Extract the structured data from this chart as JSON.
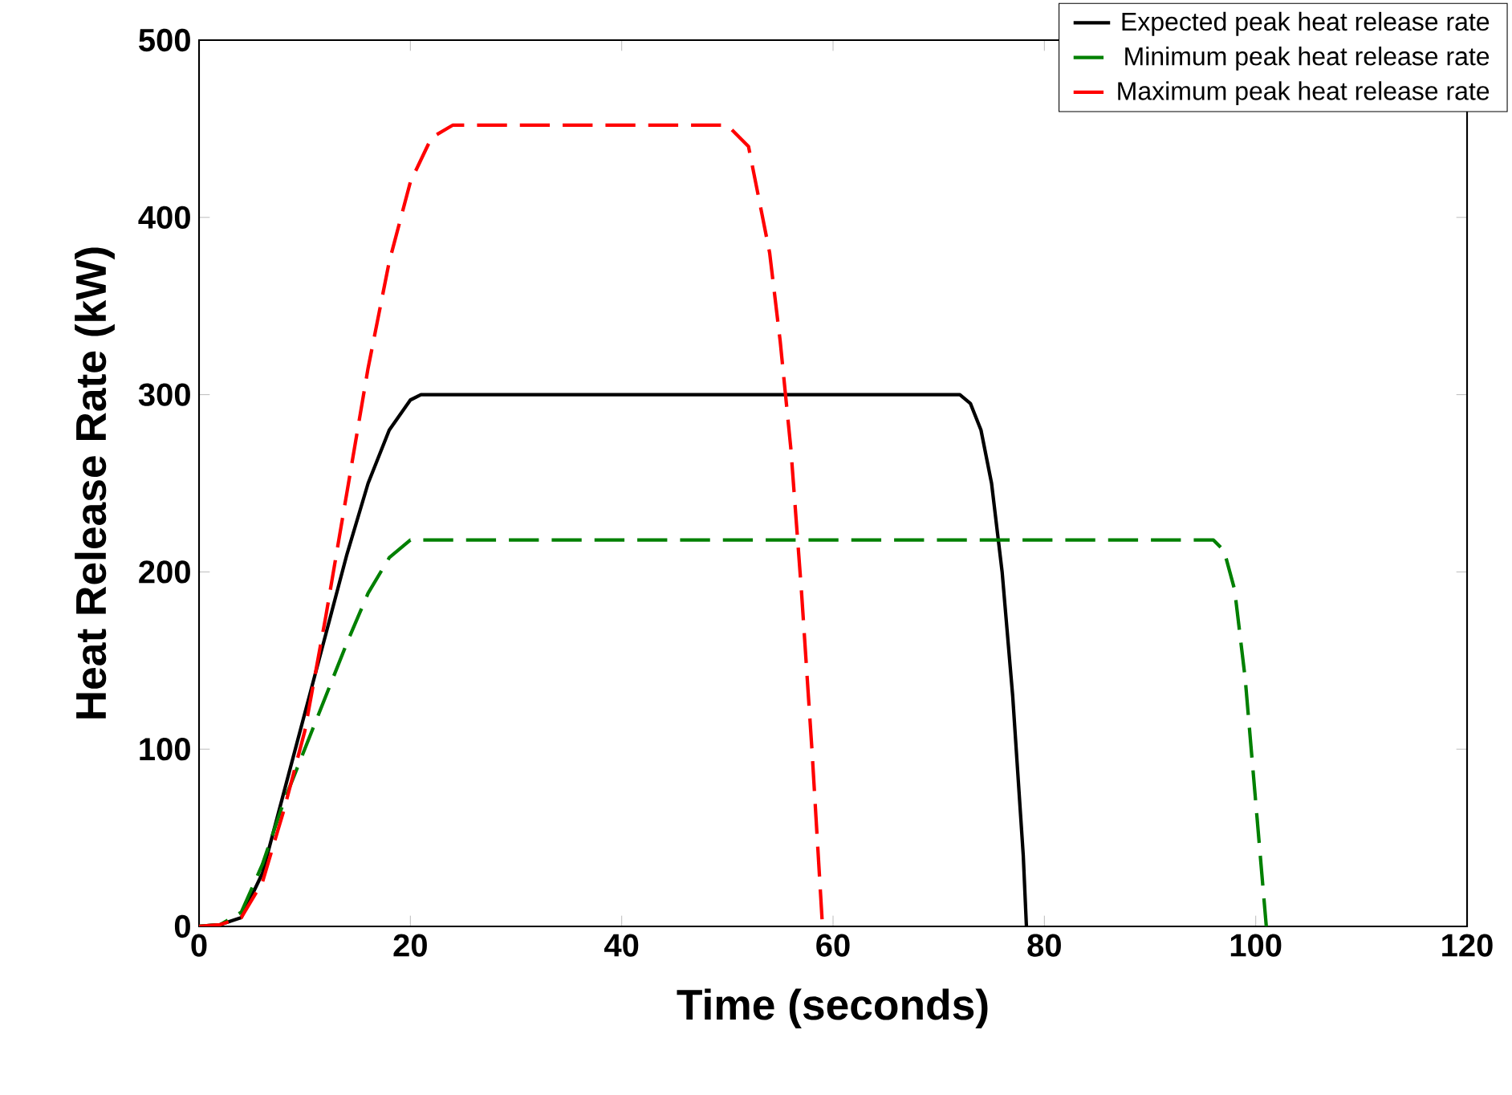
{
  "chart_data": {
    "type": "line",
    "xlabel": "Time (seconds)",
    "ylabel": "Heat Release Rate (kW)",
    "xlim": [
      0,
      120
    ],
    "ylim": [
      0,
      500
    ],
    "xticks": [
      0,
      20,
      40,
      60,
      80,
      100,
      120
    ],
    "yticks": [
      0,
      100,
      200,
      300,
      400,
      500
    ],
    "legend": "top right",
    "grid": false,
    "marker": "none",
    "series": [
      {
        "name": "Expected peak heat release rate",
        "color": "#000000",
        "line_style": "solid",
        "x": [
          0,
          2,
          4,
          6,
          8,
          10,
          12,
          14,
          16,
          18,
          20,
          21,
          72,
          73,
          74,
          75,
          76,
          77,
          78,
          78.3
        ],
        "values": [
          0,
          1,
          5,
          30,
          75,
          120,
          165,
          210,
          250,
          280,
          297,
          300,
          300,
          295,
          280,
          250,
          200,
          130,
          40,
          0
        ]
      },
      {
        "name": "Minimum peak heat release rate",
        "color": "#008000",
        "line_style": "dashed",
        "x": [
          0,
          2,
          4,
          6,
          8,
          10,
          12,
          14,
          16,
          18,
          20,
          96,
          97,
          98,
          99,
          100,
          101
        ],
        "values": [
          0,
          1,
          8,
          35,
          70,
          100,
          130,
          160,
          188,
          208,
          218,
          218,
          212,
          190,
          140,
          70,
          0
        ]
      },
      {
        "name": "Maximum peak heat release rate",
        "color": "#ff0000",
        "line_style": "dashed",
        "x": [
          0,
          2,
          4,
          6,
          8,
          10,
          12,
          14,
          16,
          18,
          20,
          22,
          24,
          50,
          52,
          54,
          55,
          56,
          57,
          58,
          59
        ],
        "values": [
          0,
          1,
          5,
          25,
          65,
          110,
          175,
          245,
          315,
          375,
          420,
          445,
          452,
          452,
          440,
          380,
          330,
          270,
          190,
          100,
          0
        ]
      }
    ]
  }
}
